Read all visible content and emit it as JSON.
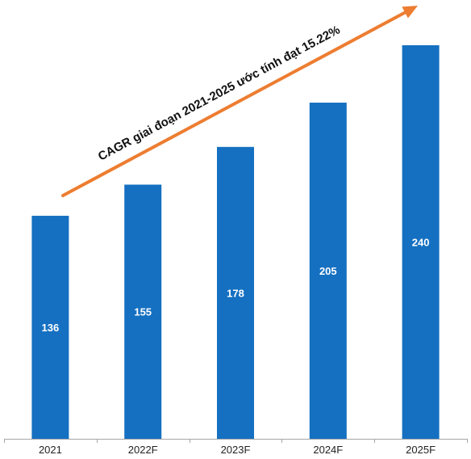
{
  "chart_data": {
    "type": "bar",
    "title": "",
    "xlabel": "",
    "ylabel": "",
    "categories": [
      "2021",
      "2022F",
      "2023F",
      "2024F",
      "2025F"
    ],
    "values": [
      136,
      155,
      178,
      205,
      240
    ],
    "value_labels": [
      "136",
      "155",
      "178",
      "205",
      "240"
    ],
    "ylim": [
      0,
      240
    ],
    "grid": false,
    "legend": "none",
    "bar_color": "#1570c1",
    "annotation": {
      "text": "CAGR giai đoạn 2021-2025 ước tính đạt 15.22%",
      "arrow_color": "#ed7d31"
    }
  }
}
